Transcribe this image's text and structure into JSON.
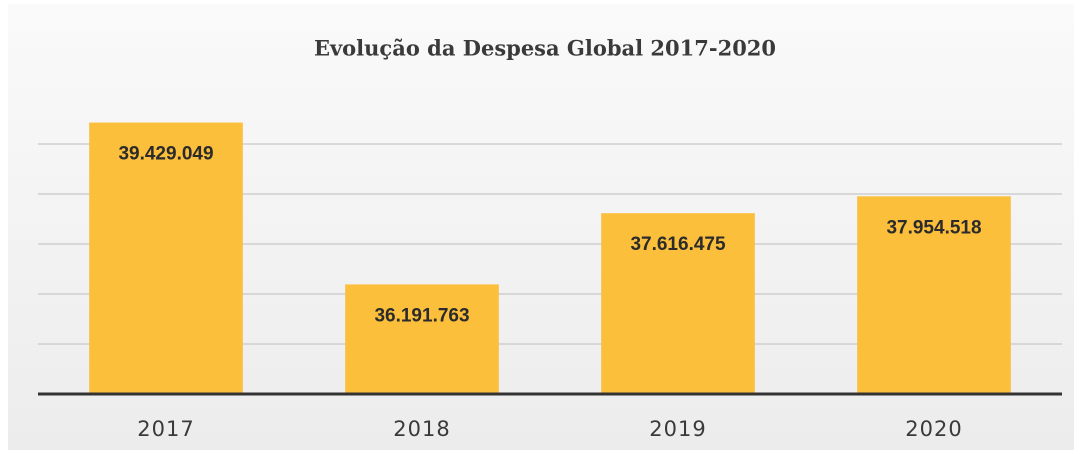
{
  "chart_data": {
    "type": "bar",
    "title": "Evolução da Despesa Global 2017-2020",
    "categories": [
      "2017",
      "2018",
      "2019",
      "2020"
    ],
    "values": [
      39429049,
      36191763,
      37616475,
      37954518
    ],
    "value_labels": [
      "39.429.049",
      "36.191.763",
      "37.616.475",
      "37.954.518"
    ],
    "color": "#fbbf3c",
    "ylim": [
      34000000,
      39500000
    ],
    "yticks": [
      34000000,
      35000000,
      36000000,
      37000000,
      38000000,
      39000000
    ],
    "grid": true
  }
}
